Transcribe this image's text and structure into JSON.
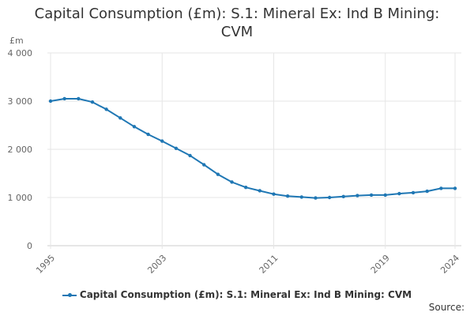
{
  "title_line1": "Capital Consumption (£m): S.1: Mineral Ex: Ind B Mining:",
  "title_line2": "CVM",
  "unit_label": "£m",
  "source_label": "Source:",
  "colors": {
    "series": "#1f77b4",
    "grid": "#e6e6e6",
    "axis": "#cccccc"
  },
  "chart_data": {
    "type": "line",
    "title": "Capital Consumption (£m): S.1: Mineral Ex: Ind B Mining: CVM",
    "xlabel": "",
    "ylabel": "£m",
    "ylim": [
      0,
      4000
    ],
    "yticks": [
      0,
      1000,
      2000,
      3000,
      4000
    ],
    "ytick_labels": [
      "0",
      "1 000",
      "2 000",
      "3 000",
      "4 000"
    ],
    "xticks": [
      1995,
      2003,
      2011,
      2019,
      2024
    ],
    "grid": true,
    "legend_position": "bottom",
    "series": [
      {
        "name": "Capital Consumption (£m): S.1: Mineral Ex: Ind B Mining: CVM",
        "x": [
          1995,
          1996,
          1997,
          1998,
          1999,
          2000,
          2001,
          2002,
          2003,
          2004,
          2005,
          2006,
          2007,
          2008,
          2009,
          2010,
          2011,
          2012,
          2013,
          2014,
          2015,
          2016,
          2017,
          2018,
          2019,
          2020,
          2021,
          2022,
          2023,
          2024
        ],
        "values": [
          3000,
          3050,
          3050,
          2980,
          2830,
          2650,
          2470,
          2310,
          2170,
          2020,
          1870,
          1680,
          1480,
          1320,
          1210,
          1140,
          1070,
          1030,
          1010,
          990,
          1000,
          1020,
          1040,
          1050,
          1050,
          1080,
          1100,
          1130,
          1190,
          1190
        ]
      }
    ]
  }
}
